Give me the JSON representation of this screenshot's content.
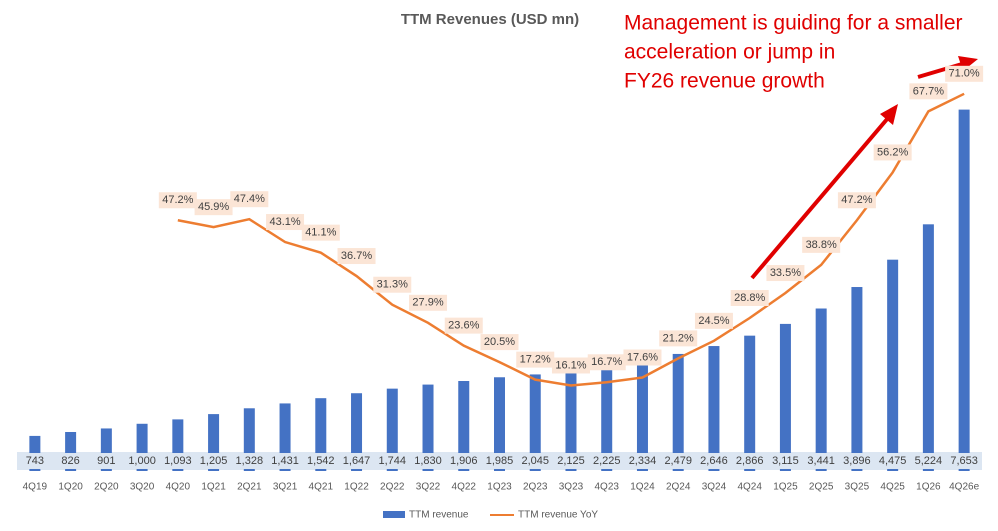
{
  "chart_data": {
    "type": "bar_line",
    "title": "TTM Revenues (USD mn)",
    "annotation": [
      "Management is guiding for a smaller",
      "acceleration or jump in",
      "FY26 revenue growth"
    ],
    "categories": [
      "4Q19",
      "1Q20",
      "2Q20",
      "3Q20",
      "4Q20",
      "1Q21",
      "2Q21",
      "3Q21",
      "4Q21",
      "1Q22",
      "2Q22",
      "3Q22",
      "4Q22",
      "1Q23",
      "2Q23",
      "3Q23",
      "4Q23",
      "1Q24",
      "2Q24",
      "3Q24",
      "4Q24",
      "1Q25",
      "2Q25",
      "3Q25",
      "4Q25",
      "1Q26",
      "4Q26e"
    ],
    "ylim": [
      0,
      9000
    ],
    "y2lim": [
      0,
      80
    ],
    "series": [
      {
        "name": "TTM revenue",
        "type": "bar",
        "color": "#4472c4",
        "values": [
          743,
          826,
          901,
          1000,
          1093,
          1205,
          1328,
          1431,
          1542,
          1647,
          1744,
          1830,
          1906,
          1985,
          2045,
          2125,
          2225,
          2334,
          2479,
          2646,
          2866,
          3115,
          3441,
          3896,
          4475,
          5224,
          7653
        ],
        "value_labels": [
          "743",
          "826",
          "901",
          "1,000",
          "1,093",
          "1,205",
          "1,328",
          "1,431",
          "1,542",
          "1,647",
          "1,744",
          "1,830",
          "1,906",
          "1,985",
          "2,045",
          "2,125",
          "2,225",
          "2,334",
          "2,479",
          "2,646",
          "2,866",
          "3,115",
          "3,441",
          "3,896",
          "4,475",
          "5,224",
          "7,653"
        ]
      },
      {
        "name": "TTM revenue YoY",
        "type": "line",
        "axis": "y2",
        "color": "#ed7d31",
        "values": [
          null,
          null,
          null,
          null,
          47.2,
          45.9,
          47.4,
          43.1,
          41.1,
          36.7,
          31.3,
          27.9,
          23.6,
          20.5,
          17.2,
          16.1,
          16.7,
          17.6,
          21.2,
          24.5,
          28.8,
          33.5,
          38.8,
          47.2,
          56.2,
          67.7,
          71.0
        ],
        "value_labels": [
          null,
          null,
          null,
          null,
          "47.2%",
          "45.9%",
          "47.4%",
          "43.1%",
          "41.1%",
          "36.7%",
          "31.3%",
          "27.9%",
          "23.6%",
          "20.5%",
          "17.2%",
          "16.1%",
          "16.7%",
          "17.6%",
          "21.2%",
          "24.5%",
          "28.8%",
          "33.5%",
          "38.8%",
          "47.2%",
          "56.2%",
          "67.7%",
          "71.0%"
        ]
      }
    ]
  }
}
